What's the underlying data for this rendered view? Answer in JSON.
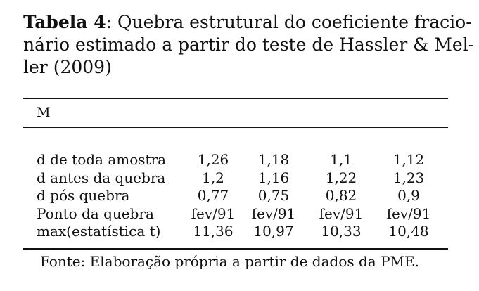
{
  "caption": {
    "label": "Tabela 4",
    "sep": ":",
    "line1": " Quebra estrutural do coeficiente fracio-",
    "line2": "nário estimado a partir do teste de Hassler & Mel-",
    "line3": "ler (2009)"
  },
  "table": {
    "header": "M",
    "rows": [
      {
        "label": "d de toda amostra",
        "values": [
          "1,26",
          "1,18",
          "1,1",
          "1,12"
        ]
      },
      {
        "label": "d antes da quebra",
        "values": [
          "1,2",
          "1,16",
          "1,22",
          "1,23"
        ]
      },
      {
        "label": "d pós quebra",
        "values": [
          "0,77",
          "0,75",
          "0,82",
          "0,9"
        ]
      },
      {
        "label": "Ponto da quebra",
        "values": [
          "fev/91",
          "fev/91",
          "fev/91",
          "fev/91"
        ]
      },
      {
        "label": "max(estatística t)",
        "values": [
          "11,36",
          "10,97",
          "10,33",
          "10,48"
        ]
      }
    ]
  },
  "source": "Fonte: Elaboração própria a partir de dados da PME."
}
